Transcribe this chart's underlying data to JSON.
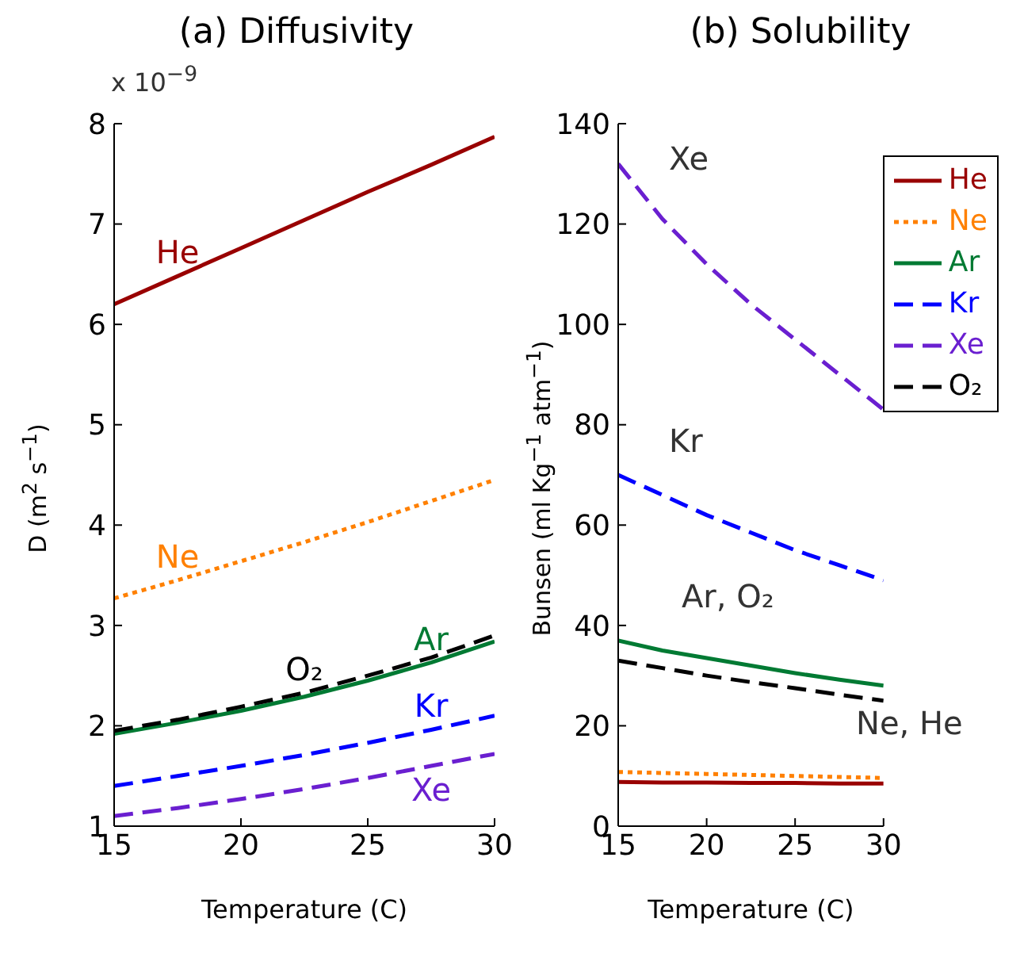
{
  "chart_data": [
    {
      "type": "line",
      "title": "(a) Diffusivity",
      "xlabel": "Temperature (C)",
      "ylabel": "D (m$^{2}$ s$^{−1}$)",
      "annotations": [
        "x 10$^{−9}$"
      ],
      "x": [
        15,
        17.5,
        20,
        22.5,
        25,
        27.5,
        30
      ],
      "series": [
        {
          "name": "He",
          "color": "#990000",
          "line_style": "solid",
          "values": [
            6.2,
            6.48,
            6.76,
            7.04,
            7.32,
            7.59,
            7.87
          ]
        },
        {
          "name": "Ne",
          "color": "#ff8000",
          "line_style": "dotted",
          "values": [
            3.27,
            3.45,
            3.64,
            3.83,
            4.03,
            4.24,
            4.45
          ]
        },
        {
          "name": "Ar",
          "color": "#007a33",
          "line_style": "solid",
          "values": [
            1.92,
            2.03,
            2.15,
            2.29,
            2.45,
            2.63,
            2.84
          ]
        },
        {
          "name": "Kr",
          "color": "#0000ff",
          "line_style": "dashed",
          "values": [
            1.4,
            1.5,
            1.6,
            1.71,
            1.83,
            1.96,
            2.1
          ]
        },
        {
          "name": "Xe",
          "color": "#6a1fd0",
          "line_style": "dashed",
          "values": [
            1.1,
            1.18,
            1.27,
            1.37,
            1.48,
            1.6,
            1.72
          ]
        },
        {
          "name": "O₂",
          "color": "#000000",
          "line_style": "dashed",
          "values": [
            1.95,
            2.06,
            2.19,
            2.33,
            2.5,
            2.68,
            2.9
          ]
        }
      ],
      "xlim": [
        15,
        30
      ],
      "xticks": [
        15,
        20,
        25,
        30
      ],
      "ylim": [
        1,
        8
      ],
      "yticks": [
        1,
        2,
        3,
        4,
        5,
        6,
        7,
        8
      ],
      "grid": false,
      "legend": false
    },
    {
      "type": "line",
      "title": "(b) Solubility",
      "xlabel": "Temperature (C)",
      "ylabel": "Bunsen (ml Kg$^{−1}$ atm$^{−1}$)",
      "annotations": [
        "Xe",
        "Kr",
        "Ar, O₂",
        "Ne, He"
      ],
      "x": [
        15,
        17.5,
        20,
        22.5,
        25,
        27.5,
        30
      ],
      "series": [
        {
          "name": "He",
          "color": "#990000",
          "line_style": "solid",
          "values": [
            8.8,
            8.7,
            8.7,
            8.6,
            8.6,
            8.5,
            8.5
          ]
        },
        {
          "name": "Ne",
          "color": "#ff8000",
          "line_style": "dotted",
          "values": [
            10.8,
            10.6,
            10.4,
            10.2,
            10,
            9.8,
            9.6
          ]
        },
        {
          "name": "Ar",
          "color": "#007a33",
          "line_style": "solid",
          "values": [
            37,
            35,
            33.5,
            32,
            30.5,
            29.2,
            28
          ]
        },
        {
          "name": "Kr",
          "color": "#0000ff",
          "line_style": "dashed",
          "values": [
            70,
            66,
            62,
            58.5,
            55,
            52,
            49
          ]
        },
        {
          "name": "Xe",
          "color": "#6a1fd0",
          "line_style": "dashed",
          "values": [
            132,
            121,
            112,
            104,
            97,
            90,
            83
          ]
        },
        {
          "name": "O₂",
          "color": "#000000",
          "line_style": "dashed",
          "values": [
            33,
            31.5,
            30,
            28.7,
            27.5,
            26.2,
            25
          ]
        }
      ],
      "xlim": [
        15,
        30
      ],
      "xticks": [
        15,
        20,
        25,
        30
      ],
      "ylim": [
        0,
        140
      ],
      "yticks": [
        0,
        20,
        40,
        60,
        80,
        100,
        120,
        140
      ],
      "grid": false,
      "legend": "top right"
    }
  ]
}
